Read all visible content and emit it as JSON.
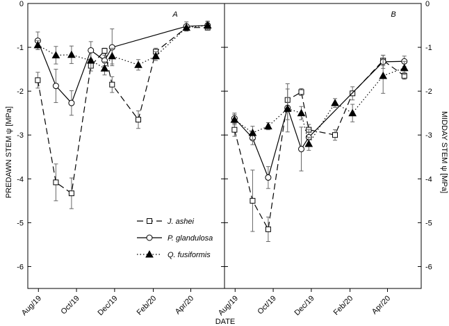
{
  "chart_data": {
    "type": "line",
    "xlabel": "DATE",
    "x_ticks": [
      "Aug/19",
      "Oct/19",
      "Dec/19",
      "Feb/20",
      "Apr/20"
    ],
    "y_ticks": [
      "0",
      "-1",
      "-2",
      "-3",
      "-4",
      "-5",
      "-6"
    ],
    "ylim": [
      -6.5,
      0
    ],
    "legend": {
      "position": "lower-left",
      "entries": [
        {
          "name": "J. ashei",
          "marker": "square-open",
          "line": "dashed"
        },
        {
          "name": "P. glandulosa",
          "marker": "circle-open",
          "line": "solid"
        },
        {
          "name": "Q. fusiformis",
          "marker": "triangle-filled",
          "line": "dotted"
        }
      ]
    },
    "panels": [
      {
        "label": "A",
        "ylabel": "PREDAWN STEM ψ [MPa]",
        "series": [
          {
            "name": "J. ashei",
            "marker": "square-open",
            "line": "dashed",
            "x": [
              "2019-07-31",
              "2019-08-29",
              "2019-09-23",
              "2019-10-24",
              "2019-11-15",
              "2019-11-27",
              "2020-01-08",
              "2020-02-05",
              "2020-03-25",
              "2020-04-28"
            ],
            "y": [
              -1.75,
              -4.08,
              -4.33,
              -1.42,
              -1.08,
              -1.85,
              -2.65,
              -1.1,
              -0.55,
              -0.55
            ],
            "err": [
              0.18,
              0.42,
              0.35,
              0.12,
              0.06,
              0.18,
              0.2,
              0.08,
              0.06,
              0.06
            ]
          },
          {
            "name": "P. glandulosa",
            "marker": "circle-open",
            "line": "solid",
            "x": [
              "2019-07-31",
              "2019-08-29",
              "2019-09-23",
              "2019-10-24",
              "2019-11-15",
              "2019-11-27",
              "2020-03-25",
              "2020-04-28"
            ],
            "y": [
              -0.85,
              -1.88,
              -2.27,
              -1.07,
              -1.3,
              -1.0,
              -0.52,
              -0.5
            ],
            "err": [
              0.2,
              0.38,
              0.28,
              0.2,
              0.12,
              0.42,
              0.1,
              0.1
            ]
          },
          {
            "name": "Q. fusiformis",
            "marker": "triangle-filled",
            "line": "dotted",
            "x": [
              "2019-07-31",
              "2019-08-29",
              "2019-09-23",
              "2019-10-24",
              "2019-11-15",
              "2019-11-27",
              "2020-01-08",
              "2020-02-05",
              "2020-03-25",
              "2020-04-28"
            ],
            "y": [
              -0.95,
              -1.18,
              -1.17,
              -1.3,
              -1.48,
              -1.2,
              -1.4,
              -1.2,
              -0.55,
              -0.5
            ],
            "err": [
              0.1,
              0.2,
              0.2,
              0.18,
              0.15,
              0.18,
              0.12,
              0.1,
              0.08,
              0.08
            ]
          }
        ]
      },
      {
        "label": "B",
        "ylabel": "MIDDAY STEM ψ [MPa]",
        "series": [
          {
            "name": "J. ashei",
            "marker": "square-open",
            "line": "dashed",
            "x": [
              "2019-07-31",
              "2019-08-29",
              "2019-09-23",
              "2019-10-24",
              "2019-11-15",
              "2019-11-27",
              "2020-01-08",
              "2020-02-05",
              "2020-03-25",
              "2020-04-28"
            ],
            "y": [
              -2.88,
              -4.5,
              -5.15,
              -2.2,
              -2.02,
              -2.88,
              -3.0,
              -2.05,
              -1.3,
              -1.65
            ],
            "err": [
              0.15,
              0.7,
              0.28,
              0.25,
              0.08,
              0.12,
              0.12,
              0.15,
              0.12,
              0.08
            ]
          },
          {
            "name": "P. glandulosa",
            "marker": "circle-open",
            "line": "solid",
            "x": [
              "2019-07-31",
              "2019-08-29",
              "2019-09-23",
              "2019-10-24",
              "2019-11-15",
              "2019-11-27",
              "2020-03-25",
              "2020-04-28"
            ],
            "y": [
              -2.62,
              -3.07,
              -3.97,
              -2.38,
              -3.32,
              -3.05,
              -1.33,
              -1.32
            ],
            "err": [
              0.12,
              0.15,
              0.25,
              0.55,
              0.5,
              0.18,
              0.15,
              0.12
            ]
          },
          {
            "name": "Q. fusiformis",
            "marker": "triangle-filled",
            "line": "dotted",
            "x": [
              "2019-07-31",
              "2019-08-29",
              "2019-09-23",
              "2019-10-24",
              "2019-11-15",
              "2019-11-27",
              "2020-01-08",
              "2020-02-05",
              "2020-03-25",
              "2020-04-28"
            ],
            "y": [
              -2.65,
              -2.95,
              -2.8,
              -2.4,
              -2.5,
              -3.2,
              -2.27,
              -2.5,
              -1.65,
              -1.47
            ],
            "err": [
              0.12,
              0.15,
              0.08,
              0.25,
              0.15,
              0.15,
              0.1,
              0.2,
              0.4,
              0.15
            ]
          }
        ]
      }
    ]
  }
}
